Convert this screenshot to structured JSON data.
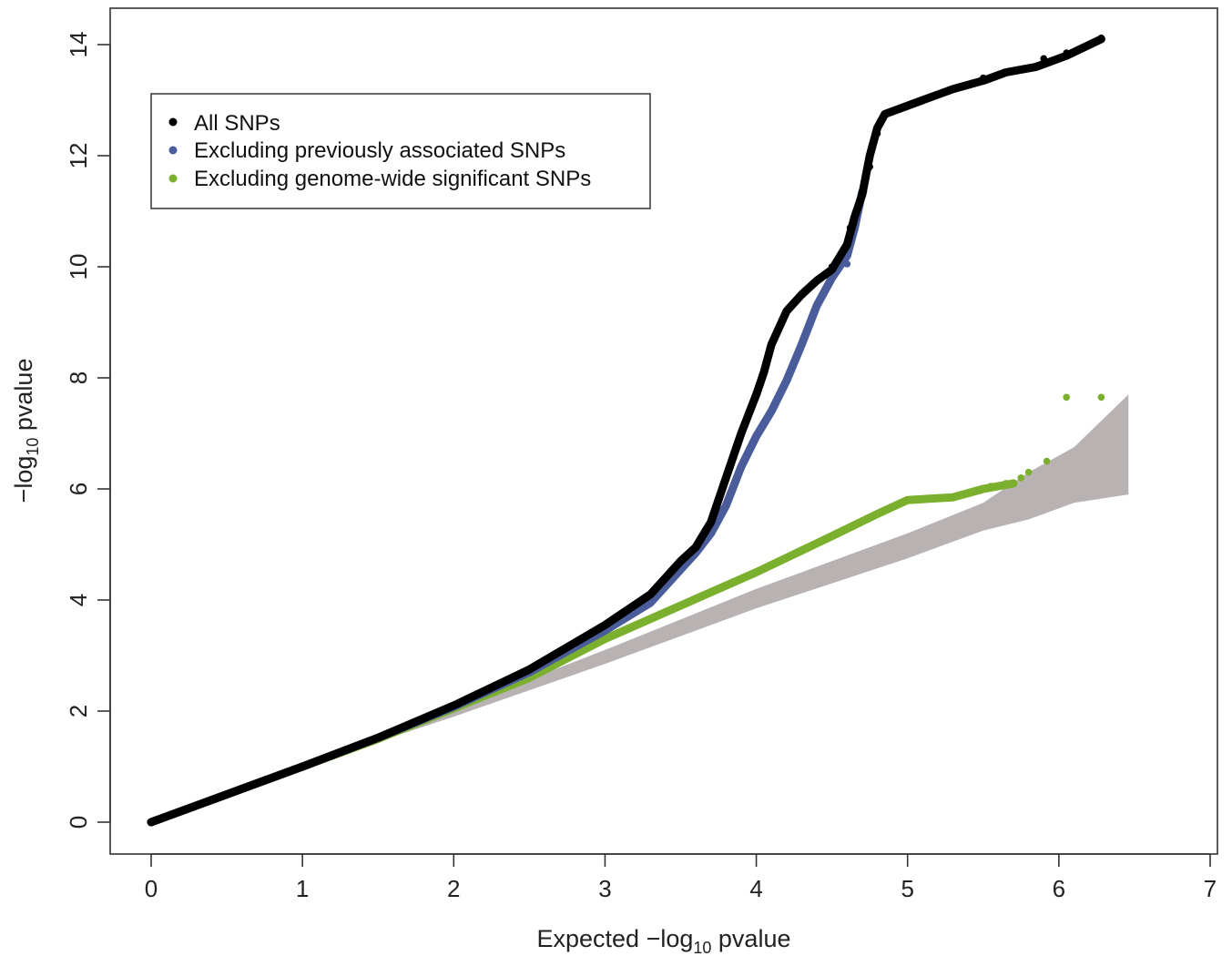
{
  "chart_data": {
    "type": "scatter",
    "title": "",
    "xlabel": {
      "prefix": "Expected −log",
      "sub": "10",
      "suffix": " pvalue"
    },
    "ylabel": {
      "prefix": "−log",
      "sub": "10",
      "suffix": " pvalue"
    },
    "xlim": [
      0,
      7
    ],
    "ylim": [
      0,
      14
    ],
    "x_ticks": [
      "0",
      "1",
      "2",
      "3",
      "4",
      "5",
      "6",
      "7"
    ],
    "y_ticks": [
      "0",
      "2",
      "4",
      "6",
      "8",
      "10",
      "12",
      "14"
    ],
    "grid": false,
    "legend_position": "top-left",
    "confidence_band": {
      "color": "#b8b2b2",
      "x": [
        0,
        1,
        2,
        3,
        4,
        4.5,
        5,
        5.5,
        5.8,
        6.1,
        6.46
      ],
      "lower": [
        0,
        1,
        1.9,
        2.85,
        3.85,
        4.3,
        4.75,
        5.25,
        5.45,
        5.75,
        5.9
      ],
      "upper": [
        0,
        1,
        2.05,
        3.1,
        4.2,
        4.7,
        5.2,
        5.75,
        6.3,
        6.75,
        7.7
      ]
    },
    "series": [
      {
        "name": "All SNPs",
        "color": "#000000",
        "points": [
          [
            0,
            0
          ],
          [
            0.5,
            0.5
          ],
          [
            1,
            1.0
          ],
          [
            1.5,
            1.52
          ],
          [
            2,
            2.1
          ],
          [
            2.5,
            2.75
          ],
          [
            3,
            3.55
          ],
          [
            3.3,
            4.1
          ],
          [
            3.5,
            4.7
          ],
          [
            3.6,
            4.95
          ],
          [
            3.7,
            5.4
          ],
          [
            3.8,
            6.2
          ],
          [
            3.9,
            7.0
          ],
          [
            4.0,
            7.7
          ],
          [
            4.05,
            8.1
          ],
          [
            4.1,
            8.6
          ],
          [
            4.2,
            9.2
          ],
          [
            4.3,
            9.5
          ],
          [
            4.4,
            9.75
          ],
          [
            4.5,
            9.95
          ],
          [
            4.6,
            10.4
          ],
          [
            4.65,
            10.9
          ],
          [
            4.7,
            11.3
          ],
          [
            4.75,
            12.0
          ],
          [
            4.8,
            12.5
          ],
          [
            4.85,
            12.75
          ],
          [
            5.0,
            12.9
          ],
          [
            5.1,
            13.0
          ],
          [
            5.3,
            13.2
          ],
          [
            5.5,
            13.35
          ],
          [
            5.65,
            13.5
          ],
          [
            5.85,
            13.6
          ],
          [
            6.05,
            13.8
          ],
          [
            6.28,
            14.1
          ]
        ],
        "markers": [
          [
            4.5,
            10.0
          ],
          [
            4.62,
            10.7
          ],
          [
            4.67,
            11.05
          ],
          [
            4.75,
            11.8
          ],
          [
            4.8,
            12.4
          ],
          [
            5.05,
            12.95
          ],
          [
            5.2,
            13.1
          ],
          [
            5.5,
            13.4
          ],
          [
            5.6,
            13.45
          ],
          [
            5.75,
            13.55
          ],
          [
            5.9,
            13.75
          ],
          [
            6.05,
            13.85
          ],
          [
            6.28,
            14.12
          ]
        ]
      },
      {
        "name": "Excluding previously associated SNPs",
        "color": "#4a5d9a",
        "points": [
          [
            0,
            0
          ],
          [
            0.5,
            0.5
          ],
          [
            1,
            1.0
          ],
          [
            1.5,
            1.52
          ],
          [
            2,
            2.08
          ],
          [
            2.5,
            2.7
          ],
          [
            3,
            3.45
          ],
          [
            3.3,
            3.95
          ],
          [
            3.5,
            4.55
          ],
          [
            3.6,
            4.85
          ],
          [
            3.7,
            5.2
          ],
          [
            3.8,
            5.7
          ],
          [
            3.9,
            6.4
          ],
          [
            4.0,
            6.95
          ],
          [
            4.1,
            7.4
          ],
          [
            4.2,
            7.95
          ],
          [
            4.3,
            8.6
          ],
          [
            4.4,
            9.3
          ],
          [
            4.5,
            9.8
          ],
          [
            4.6,
            10.2
          ],
          [
            4.65,
            10.7
          ],
          [
            4.7,
            11.35
          ]
        ],
        "markers": [
          [
            4.6,
            10.05
          ],
          [
            4.62,
            10.6
          ],
          [
            4.65,
            10.9
          ],
          [
            4.68,
            11.15
          ],
          [
            4.71,
            11.35
          ]
        ]
      },
      {
        "name": "Excluding genome-wide significant SNPs",
        "color": "#7ab02d",
        "points": [
          [
            0,
            0
          ],
          [
            0.5,
            0.5
          ],
          [
            1,
            1.0
          ],
          [
            1.5,
            1.5
          ],
          [
            2,
            2.05
          ],
          [
            2.5,
            2.6
          ],
          [
            3,
            3.3
          ],
          [
            3.5,
            3.9
          ],
          [
            4,
            4.5
          ],
          [
            4.5,
            5.15
          ],
          [
            4.8,
            5.55
          ],
          [
            5.0,
            5.8
          ],
          [
            5.3,
            5.85
          ],
          [
            5.5,
            6.0
          ],
          [
            5.7,
            6.1
          ]
        ],
        "markers": [
          [
            5.45,
            5.95
          ],
          [
            5.55,
            6.05
          ],
          [
            5.65,
            6.1
          ],
          [
            5.75,
            6.2
          ],
          [
            5.8,
            6.3
          ],
          [
            5.92,
            6.5
          ],
          [
            6.05,
            7.65
          ],
          [
            6.28,
            7.65
          ]
        ]
      }
    ]
  }
}
